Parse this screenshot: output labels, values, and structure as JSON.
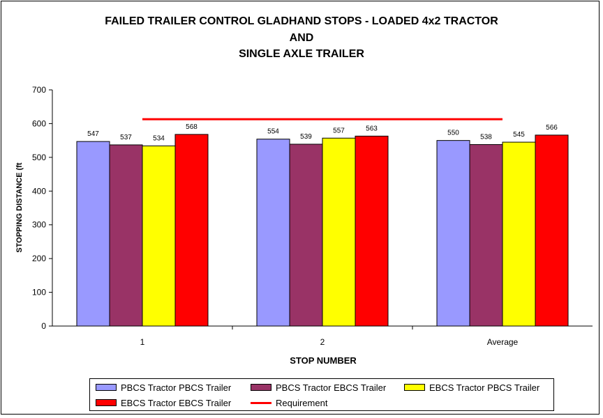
{
  "chart_data": {
    "type": "bar",
    "title_lines": [
      "FAILED TRAILER CONTROL GLADHAND STOPS - LOADED 4x2 TRACTOR",
      "AND",
      "SINGLE AXLE TRAILER"
    ],
    "xlabel": "STOP NUMBER",
    "ylabel": "STOPPING DISTANCE (ft",
    "ylim": [
      0,
      700
    ],
    "yticks": [
      0,
      100,
      200,
      300,
      400,
      500,
      600,
      700
    ],
    "categories": [
      "1",
      "2",
      "Average"
    ],
    "series": [
      {
        "name": "PBCS Tractor PBCS Trailer",
        "color": "#9999ff",
        "values": [
          547,
          554,
          550
        ]
      },
      {
        "name": "PBCS Tractor EBCS Trailer",
        "color": "#993366",
        "values": [
          537,
          539,
          538
        ]
      },
      {
        "name": "EBCS Tractor PBCS Trailer",
        "color": "#ffff00",
        "values": [
          534,
          557,
          545
        ]
      },
      {
        "name": "EBCS Tractor EBCS Trailer",
        "color": "#ff0000",
        "values": [
          568,
          563,
          566
        ]
      }
    ],
    "requirement": {
      "name": "Requirement",
      "value": 613,
      "color": "#ff0000"
    },
    "grid": false,
    "legend_position": "bottom"
  }
}
